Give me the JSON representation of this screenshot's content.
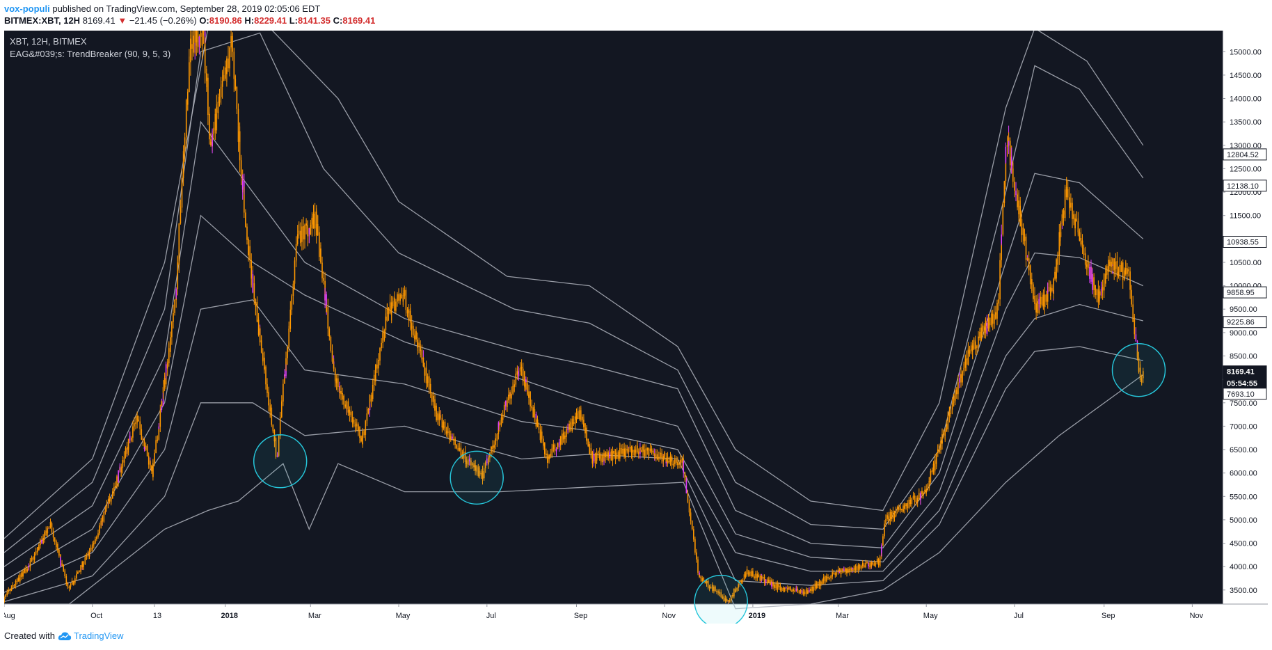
{
  "header": {
    "author": "vox-populi",
    "published_text": "published on TradingView.com, September 28, 2019 02:05:06 EDT",
    "symbol": "BITMEX:XBT, 12H",
    "last": "8169.41",
    "change_arrow": "▼",
    "change": "−21.45 (−0.26%)",
    "o_label": "O:",
    "o_value": "8190.86",
    "h_label": "H:",
    "h_value": "8229.41",
    "l_label": "L:",
    "l_value": "8141.35",
    "c_label": "C:",
    "c_value": "8169.41"
  },
  "chart_data": {
    "type": "candlestick",
    "title": "XBT, 12H, BITMEX",
    "subtitle": "EAG&#039;s: TrendBreaker (90, 9, 5, 3)",
    "ylim": [
      3200,
      15450
    ],
    "y_ticks": [
      3500,
      4000,
      4500,
      5000,
      5500,
      6000,
      6500,
      7000,
      7500,
      8000,
      8500,
      9000,
      9500,
      10000,
      10500,
      11000,
      11500,
      12000,
      12500,
      13000,
      13500,
      14000,
      14500,
      15000
    ],
    "y_tick_labels": [
      "3500.00",
      "4000.00",
      "4500.00",
      "5000.00",
      "5500.00",
      "6000.00",
      "6500.00",
      "7000.00",
      "7500.00",
      "8000.00",
      "8500.00",
      "9000.00",
      "9500.00",
      "10000.00",
      "10500.00",
      "11000.00",
      "11500.00",
      "12000.00",
      "12500.00",
      "13000.00",
      "13500.00",
      "14000.00",
      "14500.00",
      "15000.00"
    ],
    "x_range": [
      "2017-08-01",
      "2019-11-22"
    ],
    "x_ticks": [
      {
        "date": "2017-08-01",
        "label": "Aug",
        "bold": false
      },
      {
        "date": "2017-10-01",
        "label": "Oct",
        "bold": false
      },
      {
        "date": "2017-11-13",
        "label": "13",
        "bold": false
      },
      {
        "date": "2018-01-01",
        "label": "2018",
        "bold": true
      },
      {
        "date": "2018-03-01",
        "label": "Mar",
        "bold": false
      },
      {
        "date": "2018-05-01",
        "label": "May",
        "bold": false
      },
      {
        "date": "2018-07-01",
        "label": "Jul",
        "bold": false
      },
      {
        "date": "2018-09-01",
        "label": "Sep",
        "bold": false
      },
      {
        "date": "2018-11-01",
        "label": "Nov",
        "bold": false
      },
      {
        "date": "2019-01-01",
        "label": "2019",
        "bold": true
      },
      {
        "date": "2019-03-01",
        "label": "Mar",
        "bold": false
      },
      {
        "date": "2019-05-01",
        "label": "May",
        "bold": false
      },
      {
        "date": "2019-07-01",
        "label": "Jul",
        "bold": false
      },
      {
        "date": "2019-09-01",
        "label": "Sep",
        "bold": false
      },
      {
        "date": "2019-11-01",
        "label": "Nov",
        "bold": false
      }
    ],
    "price_path": [
      [
        "2017-08-01",
        3300
      ],
      [
        "2017-08-20",
        4100
      ],
      [
        "2017-09-02",
        4900
      ],
      [
        "2017-09-15",
        3500
      ],
      [
        "2017-10-01",
        4400
      ],
      [
        "2017-10-20",
        6000
      ],
      [
        "2017-11-01",
        7200
      ],
      [
        "2017-11-12",
        6000
      ],
      [
        "2017-11-28",
        9800
      ],
      [
        "2017-12-08",
        15200
      ],
      [
        "2017-12-17",
        15400
      ],
      [
        "2017-12-22",
        13000
      ],
      [
        "2018-01-06",
        15200
      ],
      [
        "2018-01-16",
        11000
      ],
      [
        "2018-02-06",
        6300
      ],
      [
        "2018-02-20",
        11000
      ],
      [
        "2018-03-05",
        11400
      ],
      [
        "2018-03-18",
        8000
      ],
      [
        "2018-04-06",
        6700
      ],
      [
        "2018-04-24",
        9500
      ],
      [
        "2018-05-05",
        9800
      ],
      [
        "2018-05-28",
        7200
      ],
      [
        "2018-06-12",
        6500
      ],
      [
        "2018-06-28",
        5900
      ],
      [
        "2018-07-24",
        8300
      ],
      [
        "2018-08-12",
        6300
      ],
      [
        "2018-09-04",
        7300
      ],
      [
        "2018-09-12",
        6300
      ],
      [
        "2018-10-15",
        6500
      ],
      [
        "2018-11-14",
        6200
      ],
      [
        "2018-11-25",
        3800
      ],
      [
        "2018-12-15",
        3250
      ],
      [
        "2018-12-28",
        3900
      ],
      [
        "2019-01-20",
        3550
      ],
      [
        "2019-02-08",
        3450
      ],
      [
        "2019-02-25",
        3850
      ],
      [
        "2019-03-30",
        4100
      ],
      [
        "2019-04-03",
        5000
      ],
      [
        "2019-05-01",
        5600
      ],
      [
        "2019-05-30",
        8500
      ],
      [
        "2019-06-20",
        9500
      ],
      [
        "2019-06-26",
        13200
      ],
      [
        "2019-07-16",
        9500
      ],
      [
        "2019-07-28",
        9900
      ],
      [
        "2019-08-06",
        12000
      ],
      [
        "2019-08-28",
        9700
      ],
      [
        "2019-09-05",
        10500
      ],
      [
        "2019-09-19",
        10200
      ],
      [
        "2019-09-24",
        8500
      ],
      [
        "2019-09-27",
        8000
      ],
      [
        "2019-09-28",
        8169
      ]
    ],
    "bands": [
      {
        "name": "upper-4",
        "points": [
          [
            "2017-08-01",
            4600
          ],
          [
            "2017-10-01",
            6300
          ],
          [
            "2017-11-20",
            10500
          ],
          [
            "2017-12-20",
            15500
          ],
          [
            "2018-02-01",
            15500
          ],
          [
            "2018-03-20",
            14000
          ],
          [
            "2018-05-01",
            11800
          ],
          [
            "2018-07-15",
            10200
          ],
          [
            "2018-09-10",
            10000
          ],
          [
            "2018-11-10",
            8700
          ],
          [
            "2018-12-20",
            6500
          ],
          [
            "2019-02-10",
            5400
          ],
          [
            "2019-04-01",
            5200
          ],
          [
            "2019-05-10",
            7500
          ],
          [
            "2019-06-25",
            13800
          ],
          [
            "2019-07-15",
            15500
          ],
          [
            "2019-08-20",
            14800
          ],
          [
            "2019-09-28",
            13000
          ]
        ]
      },
      {
        "name": "upper-3",
        "points": [
          [
            "2017-08-01",
            4300
          ],
          [
            "2017-10-01",
            5800
          ],
          [
            "2017-11-20",
            9500
          ],
          [
            "2017-12-15",
            15000
          ],
          [
            "2018-01-25",
            15400
          ],
          [
            "2018-03-10",
            12500
          ],
          [
            "2018-05-01",
            10700
          ],
          [
            "2018-07-20",
            9500
          ],
          [
            "2018-09-10",
            9200
          ],
          [
            "2018-11-10",
            8200
          ],
          [
            "2018-12-20",
            5800
          ],
          [
            "2019-02-10",
            4900
          ],
          [
            "2019-04-01",
            4800
          ],
          [
            "2019-05-10",
            6500
          ],
          [
            "2019-06-25",
            12000
          ],
          [
            "2019-07-15",
            14700
          ],
          [
            "2019-08-15",
            14200
          ],
          [
            "2019-09-28",
            12300
          ]
        ]
      },
      {
        "name": "upper-2",
        "points": [
          [
            "2017-08-01",
            4000
          ],
          [
            "2017-10-01",
            5300
          ],
          [
            "2017-11-20",
            8500
          ],
          [
            "2017-12-15",
            13500
          ],
          [
            "2018-01-20",
            12000
          ],
          [
            "2018-02-25",
            10500
          ],
          [
            "2018-05-05",
            9300
          ],
          [
            "2018-07-25",
            8600
          ],
          [
            "2018-09-10",
            8300
          ],
          [
            "2018-11-10",
            7800
          ],
          [
            "2018-12-20",
            5200
          ],
          [
            "2019-02-10",
            4500
          ],
          [
            "2019-04-01",
            4400
          ],
          [
            "2019-05-10",
            6000
          ],
          [
            "2019-06-25",
            10500
          ],
          [
            "2019-07-15",
            12400
          ],
          [
            "2019-08-15",
            12200
          ],
          [
            "2019-09-28",
            11000
          ]
        ]
      },
      {
        "name": "upper-1",
        "points": [
          [
            "2017-08-01",
            3700
          ],
          [
            "2017-10-01",
            4800
          ],
          [
            "2017-11-20",
            7500
          ],
          [
            "2017-12-15",
            11500
          ],
          [
            "2018-01-20",
            10500
          ],
          [
            "2018-02-25",
            9800
          ],
          [
            "2018-05-05",
            8800
          ],
          [
            "2018-07-25",
            8000
          ],
          [
            "2018-09-10",
            7500
          ],
          [
            "2018-11-10",
            7000
          ],
          [
            "2018-12-20",
            4700
          ],
          [
            "2019-02-10",
            4200
          ],
          [
            "2019-04-01",
            4100
          ],
          [
            "2019-05-10",
            5600
          ],
          [
            "2019-06-25",
            9500
          ],
          [
            "2019-07-15",
            10700
          ],
          [
            "2019-08-15",
            10600
          ],
          [
            "2019-09-28",
            10000
          ]
        ]
      },
      {
        "name": "mid",
        "points": [
          [
            "2017-08-01",
            3450
          ],
          [
            "2017-10-01",
            4300
          ],
          [
            "2017-11-20",
            6500
          ],
          [
            "2017-12-15",
            9500
          ],
          [
            "2018-01-20",
            9700
          ],
          [
            "2018-02-25",
            8200
          ],
          [
            "2018-05-05",
            7900
          ],
          [
            "2018-07-25",
            7100
          ],
          [
            "2018-09-10",
            6900
          ],
          [
            "2018-11-10",
            6500
          ],
          [
            "2018-12-20",
            4300
          ],
          [
            "2019-02-10",
            3900
          ],
          [
            "2019-04-01",
            3900
          ],
          [
            "2019-05-10",
            5200
          ],
          [
            "2019-06-25",
            8500
          ],
          [
            "2019-07-15",
            9300
          ],
          [
            "2019-08-15",
            9600
          ],
          [
            "2019-09-28",
            9250
          ]
        ]
      },
      {
        "name": "lower-1",
        "points": [
          [
            "2017-08-01",
            3250
          ],
          [
            "2017-10-01",
            3800
          ],
          [
            "2017-11-20",
            5500
          ],
          [
            "2017-12-15",
            7500
          ],
          [
            "2018-01-20",
            7500
          ],
          [
            "2018-02-25",
            6800
          ],
          [
            "2018-05-05",
            7000
          ],
          [
            "2018-07-25",
            6300
          ],
          [
            "2018-09-10",
            6400
          ],
          [
            "2018-11-10",
            6300
          ],
          [
            "2018-12-20",
            3700
          ],
          [
            "2019-02-10",
            3600
          ],
          [
            "2019-04-01",
            3700
          ],
          [
            "2019-05-10",
            4900
          ],
          [
            "2019-06-25",
            7800
          ],
          [
            "2019-07-15",
            8600
          ],
          [
            "2019-08-15",
            8700
          ],
          [
            "2019-09-28",
            8400
          ]
        ]
      },
      {
        "name": "lower-2",
        "points": [
          [
            "2017-08-01",
            3200
          ],
          [
            "2017-09-15",
            3200
          ],
          [
            "2017-11-20",
            4800
          ],
          [
            "2017-12-20",
            5200
          ],
          [
            "2018-01-10",
            5400
          ],
          [
            "2018-02-10",
            6200
          ],
          [
            "2018-02-28",
            4800
          ],
          [
            "2018-03-20",
            6200
          ],
          [
            "2018-05-05",
            5600
          ],
          [
            "2018-07-10",
            5600
          ],
          [
            "2018-09-10",
            5700
          ],
          [
            "2018-11-14",
            5800
          ],
          [
            "2018-12-20",
            3100
          ],
          [
            "2019-02-10",
            3200
          ],
          [
            "2019-04-01",
            3500
          ],
          [
            "2019-05-10",
            4300
          ],
          [
            "2019-06-25",
            5800
          ],
          [
            "2019-08-01",
            6800
          ],
          [
            "2019-09-28",
            8100
          ]
        ]
      }
    ],
    "circles": [
      {
        "date": "2018-02-08",
        "price": 6250
      },
      {
        "date": "2018-06-24",
        "price": 5900
      },
      {
        "date": "2018-12-10",
        "price": 3250
      },
      {
        "date": "2019-09-25",
        "price": 8200
      }
    ],
    "price_tags": [
      {
        "price": 12804.52,
        "label": "12804.52",
        "style": "light"
      },
      {
        "price": 12138.1,
        "label": "12138.10",
        "style": "light"
      },
      {
        "price": 10938.55,
        "label": "10938.55",
        "style": "light"
      },
      {
        "price": 9858.95,
        "label": "9858.95",
        "style": "light"
      },
      {
        "price": 9225.86,
        "label": "9225.86",
        "style": "light"
      },
      {
        "price": 8169.41,
        "label": "8169.41",
        "style": "dark",
        "sub": "05:54:55"
      },
      {
        "price": 7693.1,
        "label": "7693.10",
        "style": "light"
      }
    ]
  },
  "footer": {
    "created_with": "Created with",
    "brand": "TradingView"
  },
  "colors": {
    "background": "#131722",
    "candle_up": "#ff9800",
    "candle_alt": "#e040fb",
    "band": "#b2b5be",
    "circle": "#26c6da",
    "axis_text": "#131722"
  }
}
